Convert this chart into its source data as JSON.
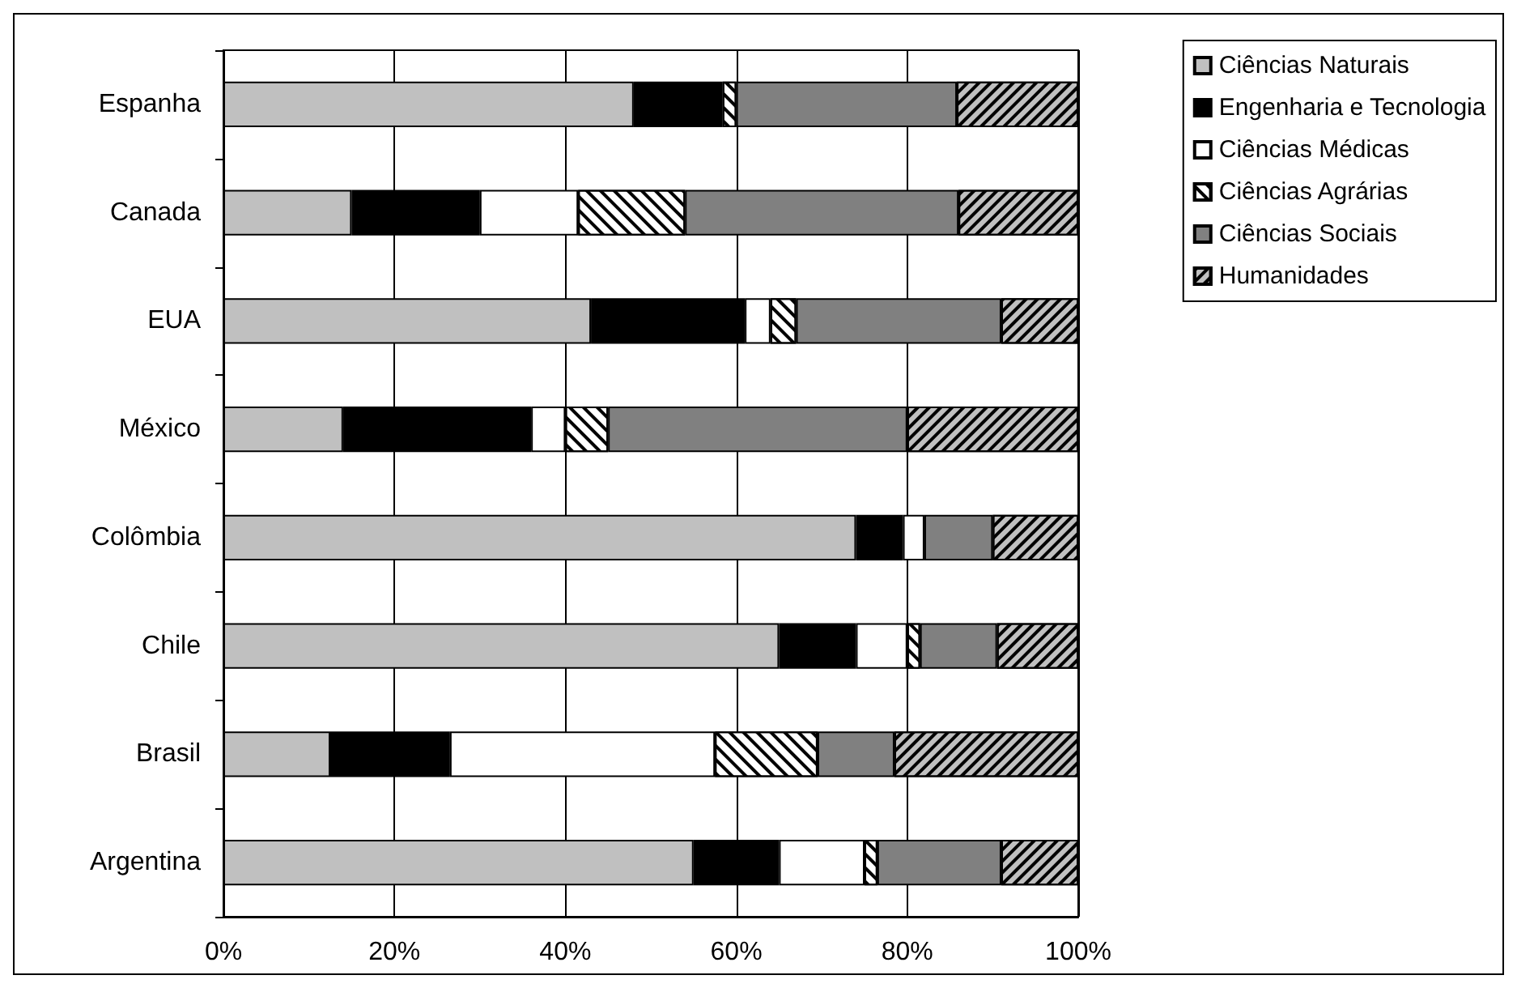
{
  "chart_data": {
    "type": "bar",
    "orientation": "horizontal",
    "stacked": true,
    "categories": [
      "Espanha",
      "Canada",
      "EUA",
      "México",
      "Colômbia",
      "Chile",
      "Brasil",
      "Argentina"
    ],
    "series": [
      {
        "name": "Ciências Naturais",
        "color": "#c0c0c0",
        "values": [
          48,
          15,
          43,
          14,
          74,
          65,
          12.5,
          55
        ]
      },
      {
        "name": "Engenharia e Tecnologia",
        "color": "#000000",
        "values": [
          10.4,
          15,
          18,
          22,
          5.5,
          9,
          14,
          10
        ]
      },
      {
        "name": "Ciências Médicas",
        "color": "#ffffff",
        "values": [
          0,
          11.5,
          3,
          4,
          2.5,
          6,
          31,
          10
        ]
      },
      {
        "name": "Ciências Agrárias",
        "color": "#ffffff",
        "values": [
          1.6,
          12.5,
          3,
          5,
          0,
          1.5,
          12,
          1.5
        ]
      },
      {
        "name": "Ciências Sociais",
        "color": "#808080",
        "values": [
          25.8,
          32,
          24,
          35,
          8,
          9,
          9,
          14.5
        ]
      },
      {
        "name": "Humanidades",
        "color": "#c0c0c0",
        "values": [
          14.2,
          14,
          9,
          20,
          10,
          9.5,
          21.5,
          9
        ]
      }
    ],
    "xlim": [
      0,
      100
    ],
    "xticks": [
      {
        "value": 0,
        "label": "0%"
      },
      {
        "value": 20,
        "label": "20%"
      },
      {
        "value": 40,
        "label": "40%"
      },
      {
        "value": 60,
        "label": "60%"
      },
      {
        "value": 80,
        "label": "80%"
      },
      {
        "value": 100,
        "label": "100%"
      }
    ],
    "grid": "x",
    "legend": "right"
  }
}
